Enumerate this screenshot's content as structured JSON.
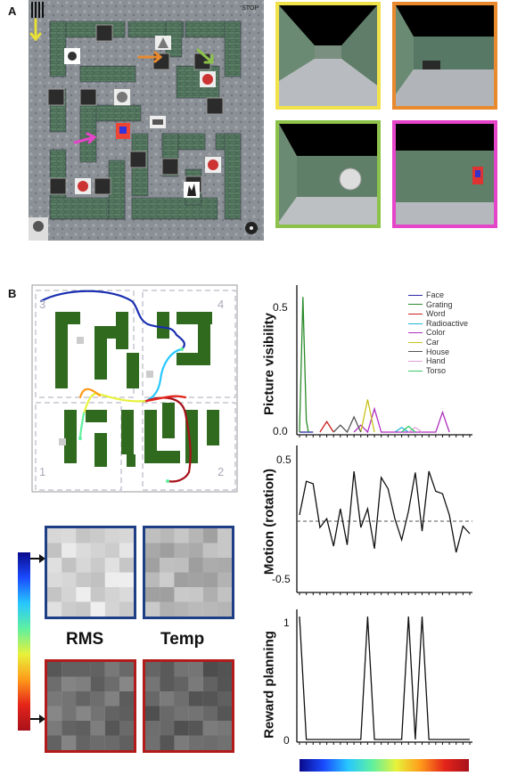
{
  "panel_a": {
    "label": "A",
    "stop_text": "STOP",
    "view_colors": [
      "#f2e24a",
      "#e8892e",
      "#8cc24a",
      "#e545c8"
    ]
  },
  "panel_b": {
    "label": "B",
    "quadrant_labels": [
      "3",
      "4",
      "1",
      "2"
    ],
    "heatmap_captions": {
      "rms": "RMS",
      "temp": "Temp"
    },
    "colorbar_colors": [
      "#0a0a8c",
      "#1a4bff",
      "#27c7ff",
      "#5ff0a0",
      "#e7f23a",
      "#ff9a1a",
      "#e4241a",
      "#a8111a"
    ]
  },
  "chart_data": [
    {
      "type": "line",
      "ylabel": "Picture visibility",
      "yticks": [
        "0.5",
        "0.0"
      ],
      "ylim": [
        0,
        0.6
      ],
      "x": [
        0,
        1,
        2,
        3,
        4,
        5,
        6,
        7,
        8,
        9,
        10,
        11,
        12,
        13,
        14,
        15,
        16,
        17,
        18,
        19,
        20,
        21,
        22,
        23,
        24,
        25
      ],
      "series": [
        {
          "name": "Face",
          "color": "#2a2aaa",
          "points": [
            [
              0,
              0
            ],
            [
              2,
              0
            ]
          ]
        },
        {
          "name": "Grating",
          "color": "#2a8a2a",
          "points": [
            [
              0,
              0
            ],
            [
              0.5,
              0.58
            ],
            [
              1,
              0.05
            ],
            [
              1.3,
              0
            ]
          ]
        },
        {
          "name": "Word",
          "color": "#cc1f1f",
          "points": [
            [
              3,
              0
            ],
            [
              4,
              0.045
            ],
            [
              5,
              0
            ]
          ]
        },
        {
          "name": "Radioactive",
          "color": "#20b6d6",
          "points": [
            [
              14,
              0
            ],
            [
              15,
              0.02
            ],
            [
              16,
              0
            ]
          ]
        },
        {
          "name": "Color",
          "color": "#b030c0",
          "points": [
            [
              8,
              0
            ],
            [
              9,
              0.03
            ],
            [
              10,
              0
            ],
            [
              11,
              0.1
            ],
            [
              12,
              0
            ],
            [
              20,
              0
            ],
            [
              21,
              0.085
            ],
            [
              22,
              0
            ]
          ]
        },
        {
          "name": "Car",
          "color": "#c8c21a",
          "points": [
            [
              9,
              0
            ],
            [
              10,
              0.14
            ],
            [
              11,
              0
            ]
          ]
        },
        {
          "name": "House",
          "color": "#555555",
          "points": [
            [
              5,
              0
            ],
            [
              6,
              0.03
            ],
            [
              7,
              0
            ],
            [
              8,
              0.065
            ],
            [
              9,
              0
            ]
          ]
        },
        {
          "name": "Hand",
          "color": "#e0a0d8",
          "points": [
            [
              16,
              0
            ],
            [
              17,
              0.02
            ],
            [
              18,
              0
            ]
          ]
        },
        {
          "name": "Torso",
          "color": "#33cc66",
          "points": [
            [
              15,
              0
            ],
            [
              16,
              0.025
            ],
            [
              17,
              0
            ]
          ]
        }
      ]
    },
    {
      "type": "line",
      "ylabel": "Motion (rotation)",
      "yticks": [
        "0.5",
        "-0.5"
      ],
      "ylim": [
        -0.55,
        0.55
      ],
      "baseline": 0,
      "x": [
        0,
        1,
        2,
        3,
        4,
        5,
        6,
        7,
        8,
        9,
        10,
        11,
        12,
        13,
        14,
        15,
        16,
        17,
        18,
        19,
        20,
        21,
        22,
        23,
        24,
        25
      ],
      "values": [
        0.05,
        0.32,
        0.3,
        -0.05,
        0.02,
        -0.2,
        0.1,
        -0.19,
        0.4,
        -0.05,
        0.1,
        -0.22,
        0.35,
        0.26,
        0.02,
        -0.15,
        0.08,
        0.39,
        -0.08,
        0.4,
        0.24,
        0.22,
        0.05,
        -0.25,
        -0.04,
        -0.1
      ]
    },
    {
      "type": "line",
      "ylabel": "Reward planning",
      "yticks": [
        "1",
        "0"
      ],
      "ylim": [
        0,
        1
      ],
      "x": [
        0,
        1,
        2,
        3,
        4,
        5,
        6,
        7,
        8,
        9,
        10,
        11,
        12,
        13,
        14,
        15,
        16,
        17,
        18,
        19,
        20,
        21,
        22,
        23,
        24,
        25
      ],
      "values": [
        1,
        0,
        0,
        0,
        0,
        0,
        0,
        0,
        0,
        0,
        1,
        0,
        0,
        0,
        0,
        0,
        1,
        0,
        1,
        0,
        0,
        0,
        0,
        0,
        0,
        0
      ]
    }
  ]
}
